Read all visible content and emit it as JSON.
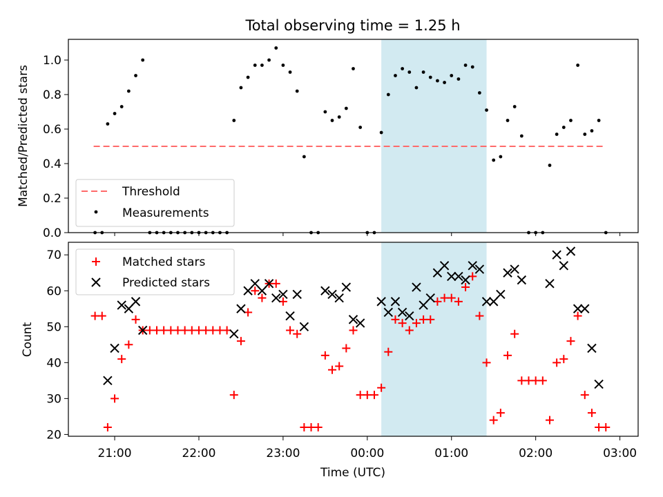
{
  "title": "Total observing time = 1.25 h",
  "colors": {
    "threshold": "#ff6a6a",
    "measurements": "#000000",
    "matched": "#ff0000",
    "predicted": "#000000",
    "shade": "#add8e6"
  },
  "chart_data": [
    {
      "type": "scatter",
      "ylabel": "Matched/Predicted stars",
      "ylim": [
        0,
        1.12
      ],
      "yticks": [
        "0.0",
        "0.2",
        "0.4",
        "0.6",
        "0.8",
        "1.0"
      ],
      "grid": false,
      "legend_position": "lower-left",
      "shaded_interval": [
        "00:10",
        "01:25"
      ],
      "series": [
        {
          "name": "Threshold",
          "style": "dashed-line",
          "points": [
            [
              "20:45",
              0.5
            ],
            [
              "02:50",
              0.5
            ]
          ]
        },
        {
          "name": "Measurements",
          "style": "dot",
          "points": [
            [
              "20:46",
              0.0
            ],
            [
              "20:51",
              0.0
            ],
            [
              "20:55",
              0.63
            ],
            [
              "21:00",
              0.69
            ],
            [
              "21:05",
              0.73
            ],
            [
              "21:10",
              0.82
            ],
            [
              "21:15",
              0.91
            ],
            [
              "21:20",
              1.0
            ],
            [
              "21:25",
              0.0
            ],
            [
              "21:30",
              0.0
            ],
            [
              "21:35",
              0.0
            ],
            [
              "21:40",
              0.0
            ],
            [
              "21:45",
              0.0
            ],
            [
              "21:50",
              0.0
            ],
            [
              "21:55",
              0.0
            ],
            [
              "22:00",
              0.0
            ],
            [
              "22:05",
              0.0
            ],
            [
              "22:10",
              0.0
            ],
            [
              "22:15",
              0.0
            ],
            [
              "22:20",
              0.0
            ],
            [
              "22:25",
              0.65
            ],
            [
              "22:30",
              0.84
            ],
            [
              "22:35",
              0.9
            ],
            [
              "22:40",
              0.97
            ],
            [
              "22:45",
              0.97
            ],
            [
              "22:50",
              1.0
            ],
            [
              "22:55",
              1.07
            ],
            [
              "23:00",
              0.97
            ],
            [
              "23:05",
              0.93
            ],
            [
              "23:10",
              0.82
            ],
            [
              "23:15",
              0.44
            ],
            [
              "23:20",
              0.0
            ],
            [
              "23:25",
              0.0
            ],
            [
              "23:30",
              0.7
            ],
            [
              "23:35",
              0.65
            ],
            [
              "23:40",
              0.67
            ],
            [
              "23:45",
              0.72
            ],
            [
              "23:50",
              0.95
            ],
            [
              "23:55",
              0.61
            ],
            [
              "00:00",
              0.0
            ],
            [
              "00:05",
              0.0
            ],
            [
              "00:10",
              0.58
            ],
            [
              "00:15",
              0.8
            ],
            [
              "00:20",
              0.91
            ],
            [
              "00:25",
              0.95
            ],
            [
              "00:30",
              0.93
            ],
            [
              "00:35",
              0.84
            ],
            [
              "00:40",
              0.93
            ],
            [
              "00:45",
              0.9
            ],
            [
              "00:50",
              0.88
            ],
            [
              "00:55",
              0.87
            ],
            [
              "01:00",
              0.91
            ],
            [
              "01:05",
              0.89
            ],
            [
              "01:10",
              0.97
            ],
            [
              "01:15",
              0.96
            ],
            [
              "01:20",
              0.81
            ],
            [
              "01:25",
              0.71
            ],
            [
              "01:30",
              0.42
            ],
            [
              "01:35",
              0.44
            ],
            [
              "01:40",
              0.65
            ],
            [
              "01:45",
              0.73
            ],
            [
              "01:50",
              0.56
            ],
            [
              "01:55",
              0.0
            ],
            [
              "02:00",
              0.0
            ],
            [
              "02:05",
              0.0
            ],
            [
              "02:10",
              0.39
            ],
            [
              "02:15",
              0.57
            ],
            [
              "02:20",
              0.61
            ],
            [
              "02:25",
              0.65
            ],
            [
              "02:30",
              0.97
            ],
            [
              "02:35",
              0.57
            ],
            [
              "02:40",
              0.59
            ],
            [
              "02:45",
              0.65
            ],
            [
              "02:50",
              0.0
            ]
          ]
        }
      ]
    },
    {
      "type": "scatter",
      "ylabel": "Count",
      "xlabel": "Time (UTC)",
      "ylim": [
        19.5,
        73.5
      ],
      "yticks": [
        "20",
        "30",
        "40",
        "50",
        "60",
        "70"
      ],
      "xlim": [
        "20:27",
        "03:13"
      ],
      "xticks": [
        "21:00",
        "22:00",
        "23:00",
        "00:00",
        "01:00",
        "02:00",
        "03:00"
      ],
      "grid": false,
      "legend_position": "top-left",
      "shaded_interval": [
        "00:10",
        "01:25"
      ],
      "series": [
        {
          "name": "Matched stars",
          "style": "plus",
          "points": [
            [
              "20:46",
              53
            ],
            [
              "20:51",
              53
            ],
            [
              "20:55",
              22
            ],
            [
              "21:00",
              30
            ],
            [
              "21:05",
              41
            ],
            [
              "21:10",
              45
            ],
            [
              "21:15",
              52
            ],
            [
              "21:20",
              49
            ],
            [
              "21:25",
              49
            ],
            [
              "21:30",
              49
            ],
            [
              "21:35",
              49
            ],
            [
              "21:40",
              49
            ],
            [
              "21:45",
              49
            ],
            [
              "21:50",
              49
            ],
            [
              "21:55",
              49
            ],
            [
              "22:00",
              49
            ],
            [
              "22:05",
              49
            ],
            [
              "22:10",
              49
            ],
            [
              "22:15",
              49
            ],
            [
              "22:20",
              49
            ],
            [
              "22:25",
              31
            ],
            [
              "22:30",
              46
            ],
            [
              "22:35",
              54
            ],
            [
              "22:40",
              60
            ],
            [
              "22:45",
              58
            ],
            [
              "22:50",
              62
            ],
            [
              "22:55",
              62
            ],
            [
              "23:00",
              57
            ],
            [
              "23:05",
              49
            ],
            [
              "23:10",
              48
            ],
            [
              "23:15",
              22
            ],
            [
              "23:20",
              22
            ],
            [
              "23:25",
              22
            ],
            [
              "23:30",
              42
            ],
            [
              "23:35",
              38
            ],
            [
              "23:40",
              39
            ],
            [
              "23:45",
              44
            ],
            [
              "23:50",
              49
            ],
            [
              "23:55",
              31
            ],
            [
              "00:00",
              31
            ],
            [
              "00:05",
              31
            ],
            [
              "00:10",
              33
            ],
            [
              "00:15",
              43
            ],
            [
              "00:20",
              52
            ],
            [
              "00:25",
              51
            ],
            [
              "00:30",
              49
            ],
            [
              "00:35",
              51
            ],
            [
              "00:40",
              52
            ],
            [
              "00:45",
              52
            ],
            [
              "00:50",
              57
            ],
            [
              "00:55",
              58
            ],
            [
              "01:00",
              58
            ],
            [
              "01:05",
              57
            ],
            [
              "01:10",
              61
            ],
            [
              "01:15",
              64
            ],
            [
              "01:20",
              53
            ],
            [
              "01:25",
              40
            ],
            [
              "01:30",
              24
            ],
            [
              "01:35",
              26
            ],
            [
              "01:40",
              42
            ],
            [
              "01:45",
              48
            ],
            [
              "01:50",
              35
            ],
            [
              "01:55",
              35
            ],
            [
              "02:00",
              35
            ],
            [
              "02:05",
              35
            ],
            [
              "02:10",
              24
            ],
            [
              "02:15",
              40
            ],
            [
              "02:20",
              41
            ],
            [
              "02:25",
              46
            ],
            [
              "02:30",
              53
            ],
            [
              "02:35",
              31
            ],
            [
              "02:40",
              26
            ],
            [
              "02:45",
              22
            ],
            [
              "02:50",
              22
            ]
          ]
        },
        {
          "name": "Predicted stars",
          "style": "x",
          "points": [
            [
              "20:55",
              35
            ],
            [
              "21:00",
              44
            ],
            [
              "21:05",
              56
            ],
            [
              "21:10",
              55
            ],
            [
              "21:15",
              57
            ],
            [
              "21:20",
              49
            ],
            [
              "22:25",
              48
            ],
            [
              "22:30",
              55
            ],
            [
              "22:35",
              60
            ],
            [
              "22:40",
              62
            ],
            [
              "22:45",
              60
            ],
            [
              "22:50",
              62
            ],
            [
              "22:55",
              58
            ],
            [
              "23:00",
              59
            ],
            [
              "23:05",
              53
            ],
            [
              "23:10",
              59
            ],
            [
              "23:15",
              50
            ],
            [
              "23:30",
              60
            ],
            [
              "23:35",
              59
            ],
            [
              "23:40",
              58
            ],
            [
              "23:45",
              61
            ],
            [
              "23:50",
              52
            ],
            [
              "23:55",
              51
            ],
            [
              "00:10",
              57
            ],
            [
              "00:15",
              54
            ],
            [
              "00:20",
              57
            ],
            [
              "00:25",
              54
            ],
            [
              "00:30",
              53
            ],
            [
              "00:35",
              61
            ],
            [
              "00:40",
              56
            ],
            [
              "00:45",
              58
            ],
            [
              "00:50",
              65
            ],
            [
              "00:55",
              67
            ],
            [
              "01:00",
              64
            ],
            [
              "01:05",
              64
            ],
            [
              "01:10",
              63
            ],
            [
              "01:15",
              67
            ],
            [
              "01:20",
              66
            ],
            [
              "01:25",
              57
            ],
            [
              "01:30",
              57
            ],
            [
              "01:35",
              59
            ],
            [
              "01:40",
              65
            ],
            [
              "01:45",
              66
            ],
            [
              "01:50",
              63
            ],
            [
              "02:10",
              62
            ],
            [
              "02:15",
              70
            ],
            [
              "02:20",
              67
            ],
            [
              "02:25",
              71
            ],
            [
              "02:30",
              55
            ],
            [
              "02:35",
              55
            ],
            [
              "02:40",
              44
            ],
            [
              "02:45",
              34
            ]
          ]
        }
      ]
    }
  ]
}
